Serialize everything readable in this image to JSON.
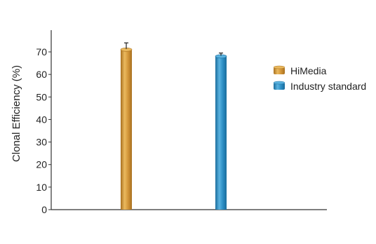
{
  "chart_data": {
    "type": "bar",
    "title": "",
    "xlabel": "",
    "ylabel": "Clonal Efficiency (%)",
    "ylim": [
      0,
      70
    ],
    "yticks": [
      0,
      10,
      20,
      30,
      40,
      50,
      60,
      70
    ],
    "grid": false,
    "legend_position": "right",
    "series": [
      {
        "name": "HiMedia",
        "value": 71,
        "error": 3,
        "color": "#D4973A",
        "color_dark": "#A8701F",
        "color_light": "#EAB95E"
      },
      {
        "name": "Industry standard",
        "value": 68,
        "error": 1.5,
        "color": "#2E90C6",
        "color_dark": "#1A6C9C",
        "color_light": "#5BB3E0"
      }
    ]
  }
}
